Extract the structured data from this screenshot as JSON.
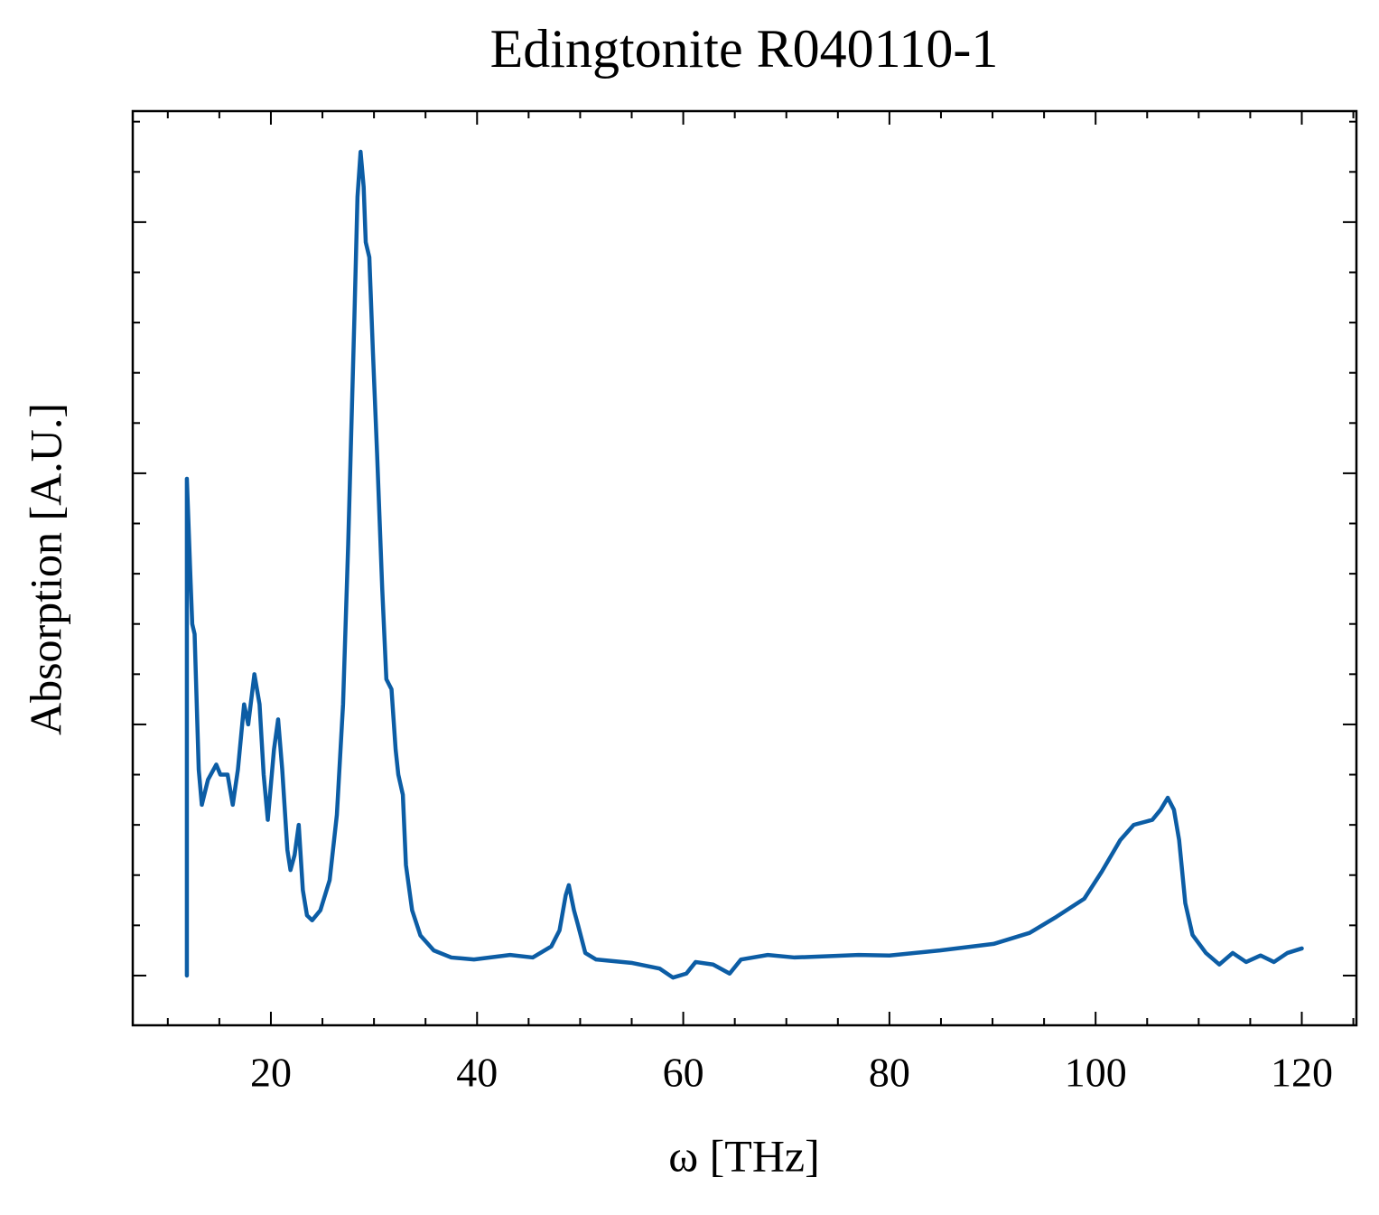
{
  "chart_data": {
    "type": "line",
    "title": "Edingtonite R040110-1",
    "x_label": "ω [THz]",
    "y_label": "Absorption [A.U.]",
    "xlim": [
      6.6,
      125.3
    ],
    "ylim": [
      -0.099,
      1.721
    ],
    "xticks": [
      20,
      40,
      60,
      80,
      100,
      120
    ],
    "yticks": [
      0,
      0.5,
      1.0,
      1.5
    ],
    "ytick_labels": false,
    "xminorticks": [
      10,
      15,
      25,
      30,
      35,
      45,
      50,
      55,
      65,
      70,
      75,
      85,
      90,
      95,
      105,
      110,
      115,
      125
    ],
    "yminorticks": [
      0.1,
      0.2,
      0.3,
      0.4,
      0.6,
      0.7,
      0.8,
      0.9,
      1.1,
      1.2,
      1.3,
      1.4,
      1.6,
      1.7
    ],
    "ticks_direction": "in",
    "mirror_ticks": true,
    "grid": false,
    "series": [
      {
        "color": "#0c5da5",
        "x": [
          11.85,
          11.85,
          12.2,
          12.37,
          12.6,
          13.0,
          13.3,
          13.9,
          14.7,
          15.1,
          15.8,
          16.3,
          16.8,
          17.4,
          17.8,
          18.4,
          18.9,
          19.3,
          19.7,
          20.3,
          20.7,
          21.1,
          21.6,
          21.9,
          22.3,
          22.7,
          23.1,
          23.5,
          24.0,
          24.8,
          25.7,
          26.4,
          27.0,
          27.5,
          28.1,
          28.4,
          28.7,
          29.0,
          29.2,
          29.55,
          29.9,
          30.3,
          30.8,
          31.2,
          31.7,
          32.1,
          32.36,
          32.8,
          33.1,
          33.7,
          34.5,
          35.8,
          37.5,
          39.7,
          43.2,
          45.4,
          47.2,
          48.0,
          48.6,
          48.9,
          49.4,
          49.8,
          50.5,
          51.55,
          55.06,
          57.7,
          59.0,
          60.3,
          61.2,
          62.9,
          64.5,
          65.6,
          68.2,
          70.8,
          77.0,
          80.0,
          84.9,
          90.1,
          93.6,
          96.2,
          98.9,
          100.6,
          102.4,
          103.7,
          105.5,
          106.3,
          107.0,
          107.6,
          108.1,
          108.7,
          109.4,
          110.7,
          112.0,
          113.3,
          114.6,
          116.0,
          117.3,
          118.6,
          120.0
        ],
        "values": [
          0,
          0.989,
          0.79,
          0.7,
          0.68,
          0.41,
          0.34,
          0.39,
          0.42,
          0.4,
          0.4,
          0.34,
          0.41,
          0.54,
          0.5,
          0.6,
          0.54,
          0.4,
          0.31,
          0.45,
          0.51,
          0.41,
          0.25,
          0.21,
          0.24,
          0.3,
          0.17,
          0.12,
          0.11,
          0.13,
          0.19,
          0.32,
          0.54,
          0.86,
          1.31,
          1.55,
          1.64,
          1.57,
          1.46,
          1.43,
          1.24,
          1.04,
          0.77,
          0.59,
          0.57,
          0.45,
          0.4,
          0.36,
          0.22,
          0.13,
          0.08,
          0.05,
          0.036,
          0.032,
          0.041,
          0.036,
          0.058,
          0.09,
          0.16,
          0.18,
          0.13,
          0.1,
          0.045,
          0.032,
          0.025,
          0.014,
          -0.004,
          0.004,
          0.027,
          0.022,
          0.004,
          0.032,
          0.041,
          0.036,
          0.041,
          0.04,
          0.05,
          0.063,
          0.085,
          0.117,
          0.153,
          0.207,
          0.27,
          0.3,
          0.31,
          0.33,
          0.354,
          0.33,
          0.27,
          0.144,
          0.081,
          0.045,
          0.022,
          0.045,
          0.027,
          0.04,
          0.027,
          0.045,
          0.054
        ]
      }
    ]
  }
}
